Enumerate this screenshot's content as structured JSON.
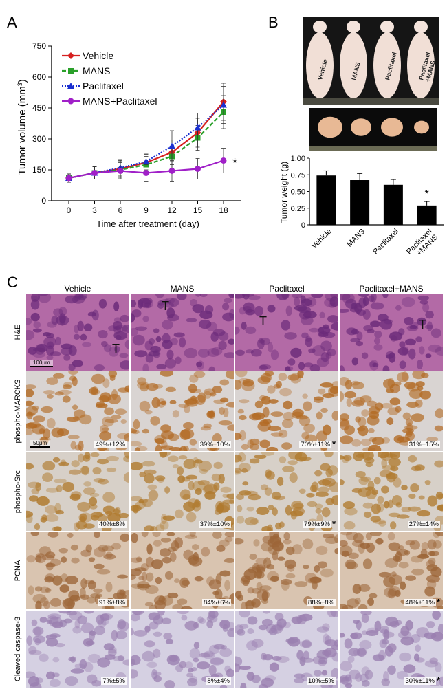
{
  "panels": {
    "a": "A",
    "b": "B",
    "c": "C"
  },
  "chart_data": [
    {
      "type": "line",
      "xlabel": "Time after treatment  (day)",
      "ylabel": "Tumor volume (mm",
      "ylabel_sup": "3",
      "ylabel_close": ")",
      "x": [
        0,
        3,
        6,
        9,
        12,
        15,
        18
      ],
      "xticks": [
        "0",
        "3",
        "6",
        "9",
        "12",
        "15",
        "18"
      ],
      "ylim": [
        0,
        750
      ],
      "yticks": [
        "0",
        "150",
        "300",
        "450",
        "600",
        "750"
      ],
      "legend_position": "top-left",
      "annotation": "*",
      "series": [
        {
          "name": "Vehicle",
          "color": "#d62020",
          "dash": "solid",
          "marker": "diamond",
          "values": [
            110,
            135,
            155,
            185,
            235,
            330,
            480
          ],
          "err": [
            20,
            30,
            40,
            40,
            60,
            70,
            90
          ]
        },
        {
          "name": "MANS",
          "color": "#2aa02a",
          "dash": "dash",
          "marker": "square",
          "values": [
            110,
            135,
            150,
            175,
            215,
            305,
            430
          ],
          "err": [
            20,
            30,
            40,
            40,
            60,
            60,
            80
          ]
        },
        {
          "name": "Paclitaxel",
          "color": "#1a2fd0",
          "dash": "dot",
          "marker": "triangle",
          "values": [
            110,
            135,
            160,
            190,
            265,
            355,
            465
          ],
          "err": [
            20,
            30,
            40,
            40,
            75,
            70,
            90
          ]
        },
        {
          "name": "MANS+Paclitaxel",
          "color": "#a020c8",
          "dash": "solid",
          "marker": "circle",
          "values": [
            110,
            135,
            145,
            135,
            145,
            155,
            195
          ],
          "err": [
            20,
            30,
            40,
            40,
            50,
            50,
            60
          ]
        }
      ]
    },
    {
      "type": "bar",
      "ylabel": "Tumor weight (g)",
      "categories": [
        "Vehicle",
        "MANS",
        "Paclitaxel",
        "Paclitaxel\n+MANS"
      ],
      "category_lines": [
        [
          "Vehicle"
        ],
        [
          "MANS"
        ],
        [
          "Paclitaxel"
        ],
        [
          "Paclitaxel",
          "+MANS"
        ]
      ],
      "values": [
        0.74,
        0.67,
        0.6,
        0.29
      ],
      "err": [
        0.07,
        0.1,
        0.08,
        0.06
      ],
      "ylim": [
        0,
        1.0
      ],
      "yticks": [
        "0",
        "0.25",
        "0.50",
        "0.75",
        "1.00"
      ],
      "annotation": "*"
    }
  ],
  "photo_labels": [
    "Vehicle",
    "MANS",
    "Paclitaxel",
    "Paclitaxel\n+MANS"
  ],
  "ihc": {
    "columns": [
      "Vehicle",
      "MANS",
      "Paclitaxel",
      "Paclitaxel+MANS"
    ],
    "rows": [
      {
        "label": "H&E",
        "scale": "100μm",
        "marks": [
          "T",
          "T",
          "T",
          "T"
        ],
        "values": [
          "",
          "",
          "",
          ""
        ],
        "stars": [
          false,
          false,
          false,
          false
        ],
        "bg": "#b36aa6",
        "cell": "#6b2b7a"
      },
      {
        "label": "phospho-MARCKS",
        "scale": "50μm",
        "values": [
          "49%±12%",
          "39%±10%",
          "70%±11%",
          "31%±15%"
        ],
        "stars": [
          false,
          false,
          true,
          false
        ],
        "bg": "#d9d4d2",
        "cell": "#b26a23"
      },
      {
        "label": "phospho-Src",
        "values": [
          "40%±8%",
          "37%±10%",
          "79%±9%",
          "27%±14%"
        ],
        "stars": [
          false,
          false,
          true,
          false
        ],
        "bg": "#d7d0c8",
        "cell": "#b07a2e"
      },
      {
        "label": "PCNA",
        "values": [
          "91%±8%",
          "84%±6%",
          "88%±8%",
          "48%±11%"
        ],
        "stars": [
          false,
          false,
          false,
          true
        ],
        "bg": "#d9c4b0",
        "cell": "#9c6537"
      },
      {
        "label": "Cleaved caspase-3",
        "values": [
          "7%±5%",
          "8%±4%",
          "10%±5%",
          "30%±11%"
        ],
        "stars": [
          false,
          false,
          false,
          true
        ],
        "bg": "#d5d0e2",
        "cell": "#9a7fb0"
      }
    ]
  }
}
